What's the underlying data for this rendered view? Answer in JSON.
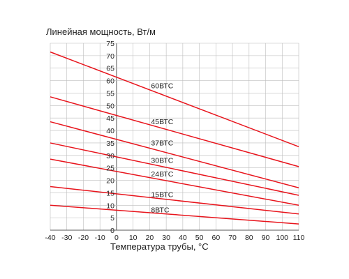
{
  "chart_data": {
    "type": "line",
    "ylabel": "Линейная мощность, Вт/м",
    "xlabel": "Температура трубы, °С",
    "xlim": [
      -40,
      110
    ],
    "ylim": [
      0,
      75
    ],
    "x_ticks": [
      -40,
      -30,
      -20,
      -10,
      0,
      10,
      20,
      30,
      40,
      50,
      60,
      70,
      80,
      90,
      100,
      110
    ],
    "y_ticks": [
      0,
      5,
      10,
      15,
      20,
      25,
      30,
      35,
      40,
      45,
      50,
      55,
      60,
      65,
      70,
      75
    ],
    "grid": true,
    "line_color": "#e8141c",
    "grid_color": "#bdbdbd",
    "series": [
      {
        "name": "60ВТС",
        "x": [
          -40,
          110
        ],
        "y": [
          71.5,
          33.5
        ],
        "label_at": [
          20,
          57
        ]
      },
      {
        "name": "45ВТС",
        "x": [
          -40,
          110
        ],
        "y": [
          53.5,
          25.5
        ],
        "label_at": [
          20,
          42.5
        ]
      },
      {
        "name": "37ВТС",
        "x": [
          -40,
          110
        ],
        "y": [
          43.5,
          17
        ],
        "label_at": [
          20,
          34
        ]
      },
      {
        "name": "30ВТС",
        "x": [
          -40,
          110
        ],
        "y": [
          35,
          14
        ],
        "label_at": [
          20,
          27
        ]
      },
      {
        "name": "24ВТС",
        "x": [
          -40,
          110
        ],
        "y": [
          28.5,
          10
        ],
        "label_at": [
          20,
          21.5
        ]
      },
      {
        "name": "15ВТС",
        "x": [
          -40,
          110
        ],
        "y": [
          17.5,
          6.5
        ],
        "label_at": [
          20,
          13.3
        ]
      },
      {
        "name": "8ВТС",
        "x": [
          -40,
          110
        ],
        "y": [
          10,
          2.5
        ],
        "label_at": [
          20,
          7.2
        ]
      }
    ]
  }
}
